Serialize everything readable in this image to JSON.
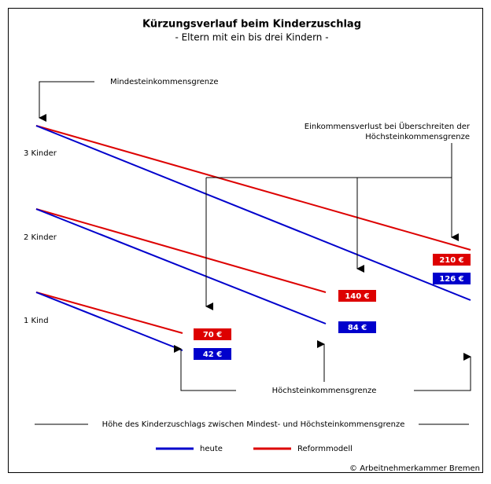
{
  "header": {
    "title": "Kürzungsverlauf beim Kinderzuschlag",
    "subtitle": "- Eltern mit ein bis drei Kindern -"
  },
  "annotations": {
    "min_income": "Mindesteinkommensgrenze",
    "loss_line1": "Einkommensverlust bei Überschreiten der",
    "loss_line2": "Höchsteinkommensgrenze",
    "max_income": "Höchsteinkommensgrenze",
    "range": "Höhe des Kinderzuschlags zwischen Mindest- und Höchsteinkommensgrenze"
  },
  "rows": [
    {
      "label": "3 Kinder",
      "reform": "210 €",
      "today": "126 €"
    },
    {
      "label": "2 Kinder",
      "reform": "140 €",
      "today": "84 €"
    },
    {
      "label": "1 Kind",
      "reform": "70 €",
      "today": "42 €"
    }
  ],
  "legend": [
    {
      "name": "heute",
      "color": "#0000cc"
    },
    {
      "name": "Reformmodell",
      "color": "#dd0000"
    }
  ],
  "footer": "© Arbeitnehmerkammer Bremen"
}
